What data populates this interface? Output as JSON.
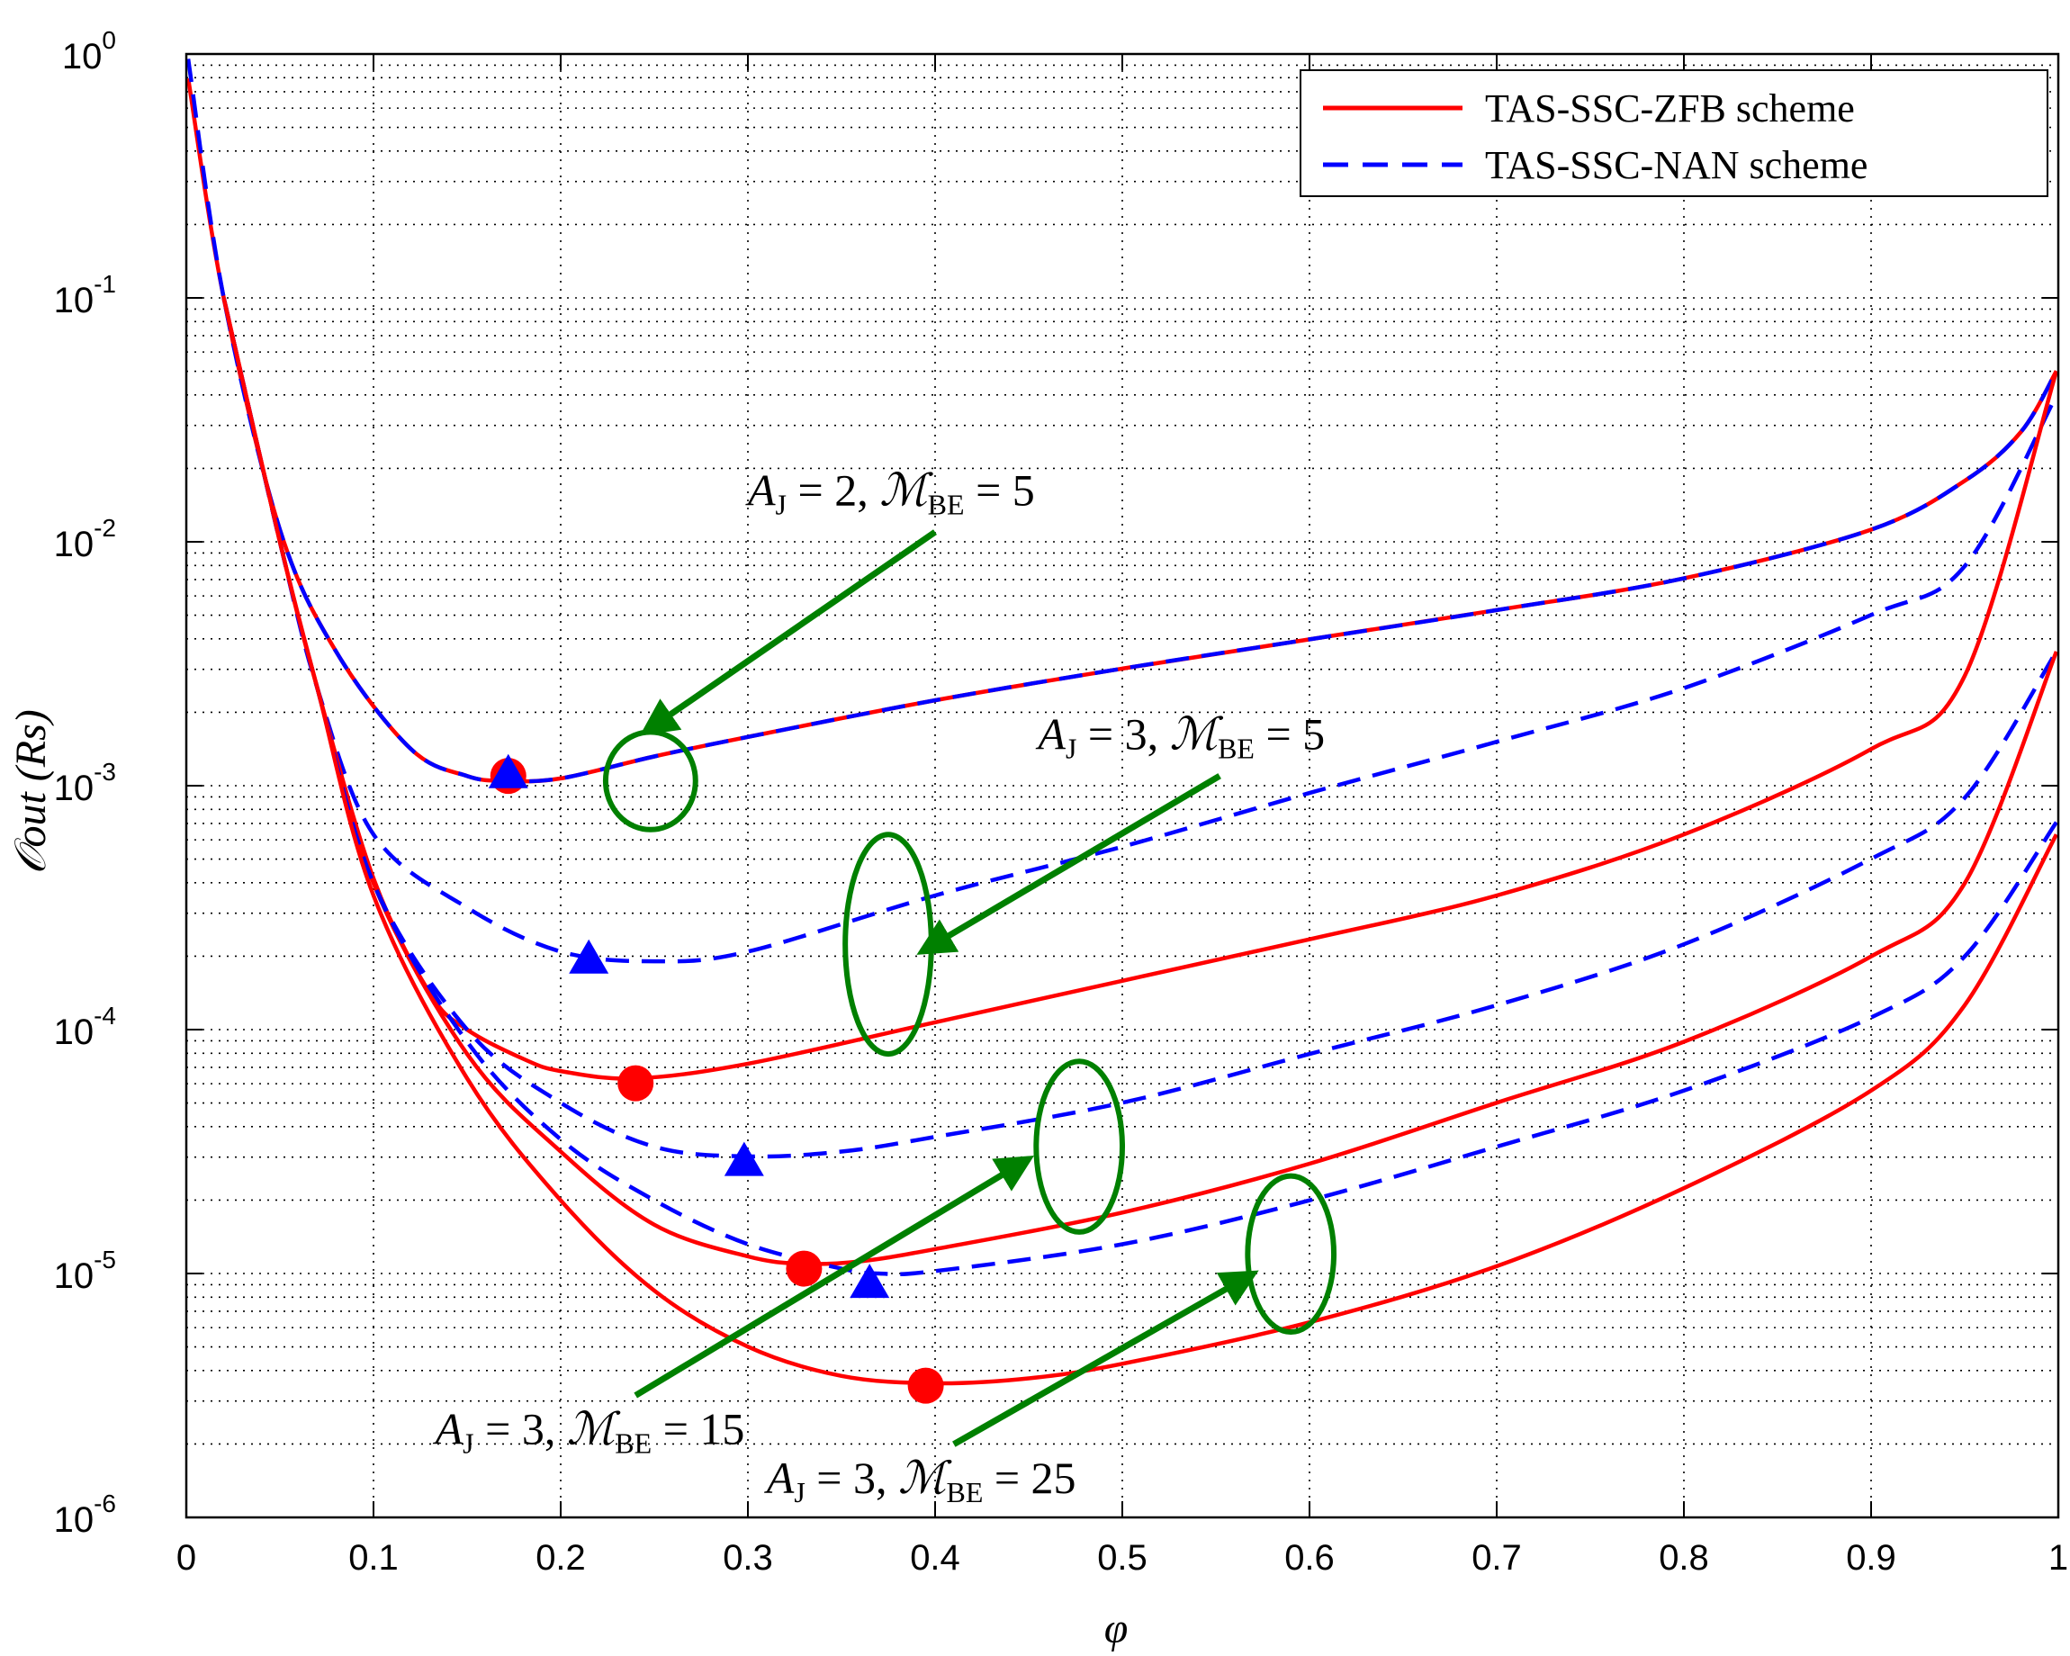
{
  "chart_data": {
    "type": "line",
    "title": "",
    "xlabel": "φ",
    "ylabel": "𝒪out (Rs)",
    "xlim": [
      0,
      1
    ],
    "ylim_log10": [
      -6,
      0
    ],
    "yscale": "log",
    "grid": true,
    "legend_position": "top-right",
    "x_ticks": [
      "0",
      "0.1",
      "0.2",
      "0.3",
      "0.4",
      "0.5",
      "0.6",
      "0.7",
      "0.8",
      "0.9",
      "1"
    ],
    "y_ticks": [
      {
        "base": "10",
        "exp": "0"
      },
      {
        "base": "10",
        "exp": "-1"
      },
      {
        "base": "10",
        "exp": "-2"
      },
      {
        "base": "10",
        "exp": "-3"
      },
      {
        "base": "10",
        "exp": "-4"
      },
      {
        "base": "10",
        "exp": "-5"
      },
      {
        "base": "10",
        "exp": "-6"
      }
    ],
    "legend": [
      {
        "label": "TAS-SSC-ZFB scheme",
        "color": "#ff0000",
        "style": "solid"
      },
      {
        "label": "TAS-SSC-NAN scheme",
        "color": "#0000ff",
        "style": "dashed"
      }
    ],
    "series": [
      {
        "name": "TAS-SSC-ZFB scheme",
        "group": "A_J=2, M_BE=5",
        "color": "#ff0000",
        "dash": false,
        "x": [
          0.001,
          0.02,
          0.05,
          0.08,
          0.12,
          0.15,
          0.17,
          0.2,
          0.25,
          0.3,
          0.4,
          0.5,
          0.6,
          0.7,
          0.8,
          0.9,
          0.95,
          0.98,
          0.999
        ],
        "log10": [
          -0.1,
          -1.0,
          -1.95,
          -2.45,
          -2.85,
          -2.96,
          -2.98,
          -2.97,
          -2.88,
          -2.8,
          -2.65,
          -2.52,
          -2.4,
          -2.28,
          -2.15,
          -1.95,
          -1.75,
          -1.55,
          -1.3
        ]
      },
      {
        "name": "TAS-SSC-NAN scheme",
        "group": "A_J=2, M_BE=5",
        "color": "#0000ff",
        "dash": true,
        "x": [
          0.001,
          0.02,
          0.05,
          0.08,
          0.12,
          0.15,
          0.17,
          0.2,
          0.25,
          0.3,
          0.4,
          0.5,
          0.6,
          0.7,
          0.8,
          0.9,
          0.95,
          0.98,
          0.999
        ],
        "log10": [
          -0.02,
          -1.0,
          -1.95,
          -2.45,
          -2.85,
          -2.96,
          -2.98,
          -2.97,
          -2.88,
          -2.8,
          -2.65,
          -2.52,
          -2.4,
          -2.28,
          -2.15,
          -1.95,
          -1.75,
          -1.55,
          -1.3
        ]
      },
      {
        "name": "TAS-SSC-NAN scheme",
        "group": "A_J=3, M_BE=5",
        "color": "#0000ff",
        "dash": true,
        "x": [
          0.02,
          0.05,
          0.07,
          0.1,
          0.15,
          0.2,
          0.25,
          0.3,
          0.4,
          0.5,
          0.6,
          0.7,
          0.8,
          0.9,
          0.95,
          0.999
        ],
        "log10": [
          -1.0,
          -2.0,
          -2.6,
          -3.2,
          -3.5,
          -3.68,
          -3.72,
          -3.68,
          -3.45,
          -3.25,
          -3.03,
          -2.82,
          -2.6,
          -2.3,
          -2.1,
          -1.4
        ]
      },
      {
        "name": "TAS-SSC-ZFB scheme",
        "group": "A_J=3, M_BE=5",
        "color": "#ff0000",
        "dash": false,
        "x": [
          0.02,
          0.05,
          0.07,
          0.1,
          0.13,
          0.15,
          0.18,
          0.2,
          0.24,
          0.3,
          0.4,
          0.5,
          0.6,
          0.7,
          0.8,
          0.9,
          0.95,
          0.999
        ],
        "log10": [
          -1.0,
          -2.0,
          -2.6,
          -3.38,
          -3.85,
          -4.0,
          -4.12,
          -4.17,
          -4.2,
          -4.14,
          -3.97,
          -3.8,
          -3.63,
          -3.45,
          -3.2,
          -2.85,
          -2.55,
          -1.3
        ]
      },
      {
        "name": "TAS-SSC-NAN scheme",
        "group": "A_J=3, M_BE=15",
        "color": "#0000ff",
        "dash": true,
        "x": [
          0.02,
          0.05,
          0.07,
          0.1,
          0.15,
          0.2,
          0.25,
          0.3,
          0.35,
          0.4,
          0.5,
          0.6,
          0.7,
          0.8,
          0.9,
          0.95,
          0.999
        ],
        "log10": [
          -1.0,
          -2.0,
          -2.6,
          -3.4,
          -4.0,
          -4.3,
          -4.48,
          -4.52,
          -4.5,
          -4.44,
          -4.3,
          -4.1,
          -3.9,
          -3.65,
          -3.3,
          -3.05,
          -2.45
        ]
      },
      {
        "name": "TAS-SSC-ZFB scheme",
        "group": "A_J=3, M_BE=15",
        "color": "#ff0000",
        "dash": false,
        "x": [
          0.02,
          0.05,
          0.07,
          0.1,
          0.15,
          0.2,
          0.25,
          0.3,
          0.33,
          0.36,
          0.4,
          0.5,
          0.6,
          0.7,
          0.8,
          0.9,
          0.95,
          0.999
        ],
        "log10": [
          -1.0,
          -2.0,
          -2.6,
          -3.4,
          -4.1,
          -4.5,
          -4.8,
          -4.93,
          -4.96,
          -4.95,
          -4.9,
          -4.75,
          -4.55,
          -4.3,
          -4.05,
          -3.7,
          -3.4,
          -2.45
        ]
      },
      {
        "name": "TAS-SSC-NAN scheme",
        "group": "A_J=3, M_BE=25",
        "color": "#0000ff",
        "dash": true,
        "x": [
          0.02,
          0.05,
          0.07,
          0.1,
          0.15,
          0.2,
          0.25,
          0.3,
          0.35,
          0.37,
          0.4,
          0.5,
          0.6,
          0.7,
          0.8,
          0.9,
          0.95,
          0.999
        ],
        "log10": [
          -1.0,
          -2.0,
          -2.6,
          -3.4,
          -4.05,
          -4.45,
          -4.7,
          -4.88,
          -4.98,
          -5.0,
          -4.99,
          -4.88,
          -4.7,
          -4.48,
          -4.25,
          -3.95,
          -3.7,
          -3.15
        ]
      },
      {
        "name": "TAS-SSC-ZFB scheme",
        "group": "A_J=3, M_BE=25",
        "color": "#ff0000",
        "dash": false,
        "x": [
          0.02,
          0.05,
          0.07,
          0.1,
          0.15,
          0.2,
          0.25,
          0.3,
          0.35,
          0.4,
          0.45,
          0.5,
          0.6,
          0.7,
          0.8,
          0.9,
          0.95,
          0.999
        ],
        "log10": [
          -1.0,
          -2.0,
          -2.6,
          -3.45,
          -4.2,
          -4.7,
          -5.07,
          -5.3,
          -5.42,
          -5.45,
          -5.43,
          -5.37,
          -5.2,
          -4.97,
          -4.65,
          -4.25,
          -3.9,
          -3.2
        ]
      }
    ],
    "optimal_markers": [
      {
        "scheme": "TAS-SSC-ZFB scheme",
        "marker": "circle",
        "color": "#ff0000",
        "x": 0.172,
        "log10": -2.96
      },
      {
        "scheme": "TAS-SSC-NAN scheme",
        "marker": "triangle",
        "color": "#0000ff",
        "x": 0.172,
        "log10": -2.94
      },
      {
        "scheme": "TAS-SSC-NAN scheme",
        "marker": "triangle",
        "color": "#0000ff",
        "x": 0.215,
        "log10": -3.7
      },
      {
        "scheme": "TAS-SSC-ZFB scheme",
        "marker": "circle",
        "color": "#ff0000",
        "x": 0.24,
        "log10": -4.22
      },
      {
        "scheme": "TAS-SSC-NAN scheme",
        "marker": "triangle",
        "color": "#0000ff",
        "x": 0.298,
        "log10": -4.53
      },
      {
        "scheme": "TAS-SSC-ZFB scheme",
        "marker": "circle",
        "color": "#ff0000",
        "x": 0.33,
        "log10": -4.98
      },
      {
        "scheme": "TAS-SSC-NAN scheme",
        "marker": "triangle",
        "color": "#0000ff",
        "x": 0.365,
        "log10": -5.03
      },
      {
        "scheme": "TAS-SSC-ZFB scheme",
        "marker": "circle",
        "color": "#ff0000",
        "x": 0.395,
        "log10": -5.46
      }
    ],
    "annotations": [
      {
        "text": "A_J = 2, ℳ_BE = 5",
        "A_sub": "J",
        "A_val": "2",
        "M_sub": "BE",
        "M_val": "5",
        "text_x": 0.3,
        "text_log10": -1.85,
        "arrow_from": [
          0.4,
          -1.96
        ],
        "arrow_to": [
          0.245,
          -2.78
        ],
        "ellipse": {
          "x": 0.248,
          "log10": -2.98,
          "rx": 0.024,
          "ry_decades": 0.2
        }
      },
      {
        "text": "A_J = 3, ℳ_BE = 5",
        "A_sub": "J",
        "A_val": "3",
        "M_sub": "BE",
        "M_val": "5",
        "text_x": 0.455,
        "text_log10": -2.85,
        "arrow_from": [
          0.552,
          -2.96
        ],
        "arrow_to": [
          0.393,
          -3.68
        ],
        "ellipse": {
          "x": 0.375,
          "log10": -3.65,
          "rx": 0.023,
          "ry_decades": 0.45
        }
      },
      {
        "text": "A_J = 3, ℳ_BE = 15",
        "A_sub": "J",
        "A_val": "3",
        "M_sub": "BE",
        "M_val": "15",
        "text_x": 0.133,
        "text_log10": -5.7,
        "arrow_from": [
          0.24,
          -5.5
        ],
        "arrow_to": [
          0.45,
          -4.53
        ],
        "ellipse": {
          "x": 0.477,
          "log10": -4.48,
          "rx": 0.023,
          "ry_decades": 0.35
        }
      },
      {
        "text": "A_J = 3, ℳ_BE = 25",
        "A_sub": "J",
        "A_val": "3",
        "M_sub": "BE",
        "M_val": "25",
        "text_x": 0.31,
        "text_log10": -5.9,
        "arrow_from": [
          0.41,
          -5.7
        ],
        "arrow_to": [
          0.57,
          -5.0
        ],
        "ellipse": {
          "x": 0.59,
          "log10": -4.92,
          "rx": 0.023,
          "ry_decades": 0.32
        }
      }
    ]
  }
}
